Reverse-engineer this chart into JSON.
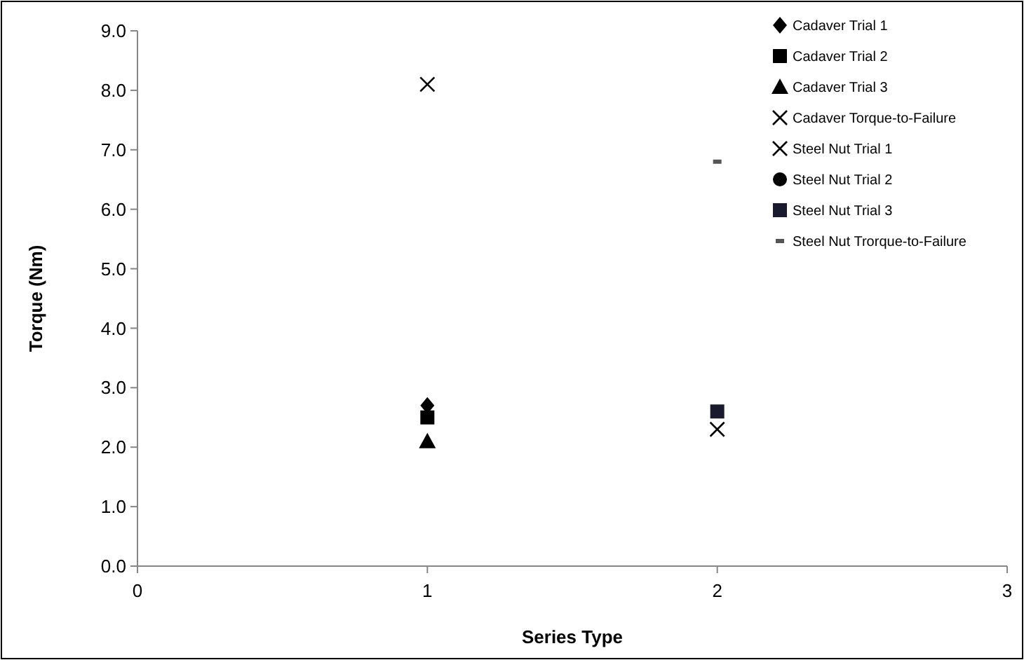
{
  "chart_data": {
    "type": "scatter",
    "xlabel": "Series Type",
    "ylabel": "Torque (Nm)",
    "xlim": [
      0,
      3
    ],
    "xticks": [
      0,
      1,
      2,
      3
    ],
    "ylim": [
      0,
      9
    ],
    "yticks": [
      {
        "value": 0,
        "label": "0.0"
      },
      {
        "value": 1,
        "label": "1.0"
      },
      {
        "value": 2,
        "label": "2.0"
      },
      {
        "value": 3,
        "label": "3.0"
      },
      {
        "value": 4,
        "label": "4.0"
      },
      {
        "value": 5,
        "label": "5.0"
      },
      {
        "value": 6,
        "label": "6.0"
      },
      {
        "value": 7,
        "label": "7.0"
      },
      {
        "value": 8,
        "label": "8.0"
      },
      {
        "value": 9,
        "label": "9.0"
      }
    ],
    "grid": false,
    "legend": "top right",
    "x": [
      1,
      2
    ],
    "series": [
      {
        "name": "Cadaver Trial 1",
        "color": "#000000",
        "marker": "diamond",
        "values": [
          2.7,
          null
        ]
      },
      {
        "name": "Cadaver Trial 2",
        "color": "#000000",
        "marker": "square",
        "values": [
          2.5,
          null
        ]
      },
      {
        "name": "Cadaver Trial 3",
        "color": "#000000",
        "marker": "triangle",
        "values": [
          2.1,
          null
        ]
      },
      {
        "name": "Cadaver Torque-to-Failure",
        "color": "#000000",
        "marker": "cross",
        "values": [
          8.1,
          null
        ]
      },
      {
        "name": "Steel Nut Trial 1",
        "color": "#000000",
        "marker": "cross",
        "values": [
          null,
          2.3
        ]
      },
      {
        "name": "Steel Nut Trial 2",
        "color": "#000000",
        "marker": "circle",
        "values": [
          null,
          null
        ]
      },
      {
        "name": "Steel Nut Trial 3",
        "color": "#1a1a2e",
        "marker": "square",
        "values": [
          null,
          2.6
        ]
      },
      {
        "name": "Steel Nut Trorque-to-Failure",
        "color": "#555555",
        "values": [
          null,
          6.8
        ]
      }
    ]
  }
}
